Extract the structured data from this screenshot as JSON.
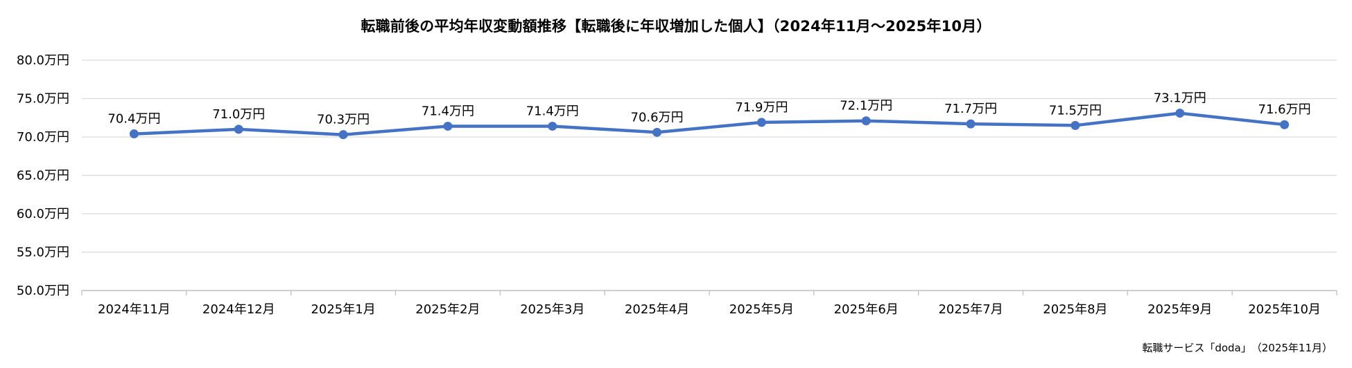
{
  "chart_data": {
    "type": "line",
    "title": "転職前後の平均年収変動額推移【転職後に年収増加した個人】（2024年11月～2025年10月）",
    "categories": [
      "2024年11月",
      "2024年12月",
      "2025年1月",
      "2025年2月",
      "2025年3月",
      "2025年4月",
      "2025年5月",
      "2025年6月",
      "2025年7月",
      "2025年8月",
      "2025年9月",
      "2025年10月"
    ],
    "series": [
      {
        "values": [
          70.4,
          71.0,
          70.3,
          71.4,
          71.4,
          70.6,
          71.9,
          72.1,
          71.7,
          71.5,
          73.1,
          71.6
        ]
      }
    ],
    "data_labels": [
      "70.4万円",
      "71.0万円",
      "70.3万円",
      "71.4万円",
      "71.4万円",
      "70.6万円",
      "71.9万円",
      "72.1万円",
      "71.7万円",
      "71.5万円",
      "73.1万円",
      "71.6万円"
    ],
    "y_ticks": [
      50,
      55,
      60,
      65,
      70,
      75,
      80
    ],
    "y_tick_labels": [
      "50.0万円",
      "55.0万円",
      "60.0万円",
      "65.0万円",
      "70.0万円",
      "75.0万円",
      "80.0万円"
    ],
    "ylim": [
      50,
      80
    ],
    "grid": true,
    "legend": "none",
    "colors": {
      "line": "#4472C4",
      "grid": "#D9D9D9",
      "axis": "#BFBFBF"
    }
  },
  "source": "転職サービス「doda」　（2025年11月）"
}
